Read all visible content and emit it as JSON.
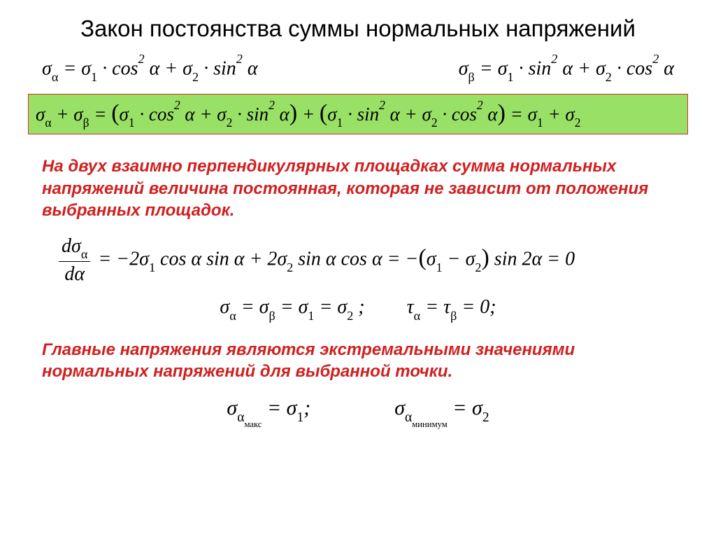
{
  "title": "Закон постоянства суммы нормальных напряжений",
  "eq_alpha": "σ<sub>α</sub> = σ<sub>1</sub> · cos<sup>2</sup> α + σ<sub>2</sub> · sin<sup>2</sup> α",
  "eq_beta": "σ<sub>β</sub> = σ<sub>1</sub> · sin<sup>2</sup> α + σ<sub>2</sub> · cos<sup>2</sup> α",
  "eq_sum": "σ<sub>α</sub> + σ<sub>β</sub> = <span class='bigp'>(</span>σ<sub>1</sub> · cos<sup>2</sup> α + σ<sub>2</sub> · sin<sup>2</sup> α<span class='bigp'>)</span> + <span class='bigp'>(</span>σ<sub>1</sub> · sin<sup>2</sup> α + σ<sub>2</sub> · cos<sup>2</sup> α<span class='bigp'>)</span> = σ<sub>1</sub> + σ<sub>2</sub>",
  "para1": "На двух взаимно перпендикулярных площадках сумма нормальных напряжений величина постоянная, которая не зависит от положения выбранных площадок.",
  "eq_deriv": "<span class='frac'><span class='num'>dσ<sub>α</sub></span><span class='den'>dα</span></span>  = −2σ<sub>1</sub> cos α sin α + 2σ<sub>2</sub> sin α cos α = −<span class='bigp'>(</span>σ<sub>1</sub> − σ<sub>2</sub><span class='bigp'>)</span> sin 2α = 0",
  "eq_equal": "σ<sub>α</sub>  =  σ<sub>β</sub>  =  σ<sub>1</sub>  =  σ<sub>2</sub> ;<span class='spacer-lg'></span>τ<sub>α</sub>  =  τ<sub>β</sub>  =  0;",
  "para2": "Главные напряжения являются экстремальными значениями нормальных напряжений для выбранной точки.",
  "eq_extrema": "σ<sub>α<sub>макс</sub></sub>  = σ<sub>1</sub>;<span class='spacer-lg'></span><span class='spacer-lg'></span>σ<sub>α<sub>минимум</sub></sub>  = σ<sub>2</sub>",
  "colors": {
    "box_border": "#d03030",
    "box_bg": "#99e066",
    "red": "#d02020",
    "text": "#000000",
    "bg": "#ffffff"
  }
}
